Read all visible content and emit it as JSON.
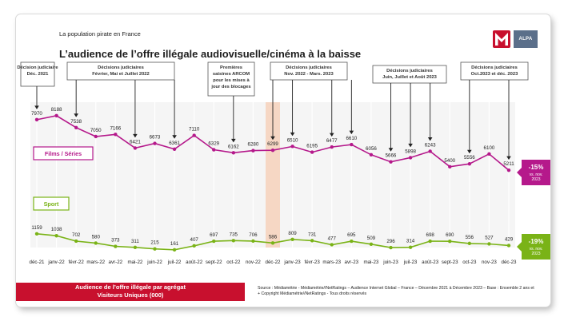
{
  "header": {
    "subtitle": "La population pirate en France",
    "title": "L’audience de l’offre illégale audiovisuelle/cinéma à la baisse",
    "alpa_label": "ALPA"
  },
  "chart_data": {
    "type": "line",
    "categories": [
      "déc-21",
      "janv-22",
      "févr-22",
      "mars-22",
      "avr-22",
      "mai-22",
      "juin-22",
      "juil-22",
      "août-22",
      "sept-22",
      "oct-22",
      "nov-22",
      "déc-22",
      "janv-23",
      "févr-23",
      "mars-23",
      "avr-23",
      "mai-23",
      "juin-23",
      "juil-23",
      "août-23",
      "sept-23",
      "oct-23",
      "nov-23",
      "déc-23"
    ],
    "series": [
      {
        "name": "Films / Séries",
        "color": "#b5198b",
        "values": [
          7970,
          8188,
          7538,
          7050,
          7166,
          6421,
          6673,
          6361,
          7110,
          6329,
          6162,
          6280,
          6299,
          6510,
          6195,
          6477,
          6610,
          6056,
          5666,
          5898,
          6243,
          5400,
          5556,
          6100,
          5211
        ]
      },
      {
        "name": "Sport",
        "color": "#7ab317",
        "values": [
          1159,
          1038,
          702,
          580,
          373,
          311,
          215,
          161,
          407,
          697,
          735,
          706,
          586,
          809,
          731,
          477,
          695,
          509,
          296,
          314,
          698,
          690,
          556,
          527,
          429
        ]
      }
    ],
    "highlight_category": "déc-22",
    "highlight_color": "#f6d7c4",
    "annotations": [
      {
        "text": [
          "Décision judiciaire",
          "Déc. 2021"
        ],
        "arrow_categories": [
          "déc-21"
        ]
      },
      {
        "text": [
          "Décisions judiciaires",
          "Février, Mai et Juillet 2022"
        ],
        "arrow_categories": [
          "févr-22",
          "mai-22",
          "juil-22"
        ]
      },
      {
        "text": [
          "Premières",
          "saisines ARCOM",
          "pour les mises à",
          "jour des blocages"
        ],
        "arrow_categories": [
          "oct-22"
        ]
      },
      {
        "text": [
          "Décisions judiciaires",
          "Nov. 2022 - Mars. 2023"
        ],
        "arrow_categories": [
          "déc-22",
          "janv-23",
          "mars-23",
          "avr-23"
        ]
      },
      {
        "text": [
          "Décisions judiciaires",
          "Juin, Juillet et Août 2023"
        ],
        "arrow_categories": [
          "juin-23",
          "juil-23",
          "août-23"
        ]
      },
      {
        "text": [
          "Décisions judiciaires",
          "Oct.2023 et déc. 2023"
        ],
        "arrow_categories": [
          "oct-23",
          "déc-23"
        ]
      }
    ],
    "badges": [
      {
        "series": "Films / Séries",
        "pct": "-15%",
        "sub": [
          "vs. nov.",
          "2023"
        ],
        "color": "#b5198b"
      },
      {
        "series": "Sport",
        "pct": "-19%",
        "sub": [
          "vs. nov.",
          "2023"
        ],
        "color": "#7ab317"
      }
    ]
  },
  "footer": {
    "box_line1": "Audience de l’offre illégale par agrégat",
    "box_line2": "Visiteurs Uniques (000)",
    "box_color": "#c8102e",
    "source": "Source : Médiamétrie - Médiamétrie//NetRatings – Audience Internet Global – France – Décembre 2021 à Décembre 2023 – Base : Ensemble 2 ans et + Copyright Médiamétrie//NetRatings - Tous droits réservés"
  }
}
